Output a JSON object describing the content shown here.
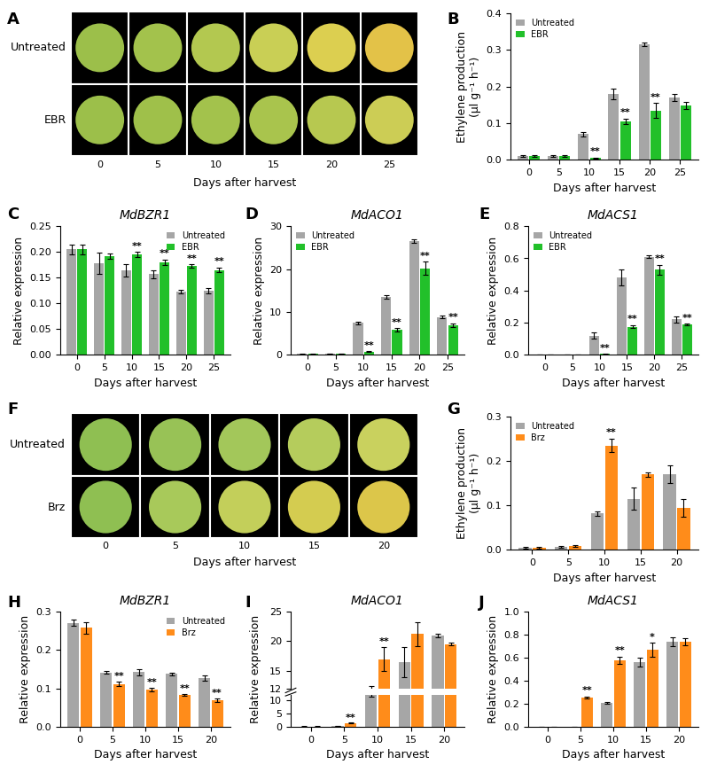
{
  "chart_data": [
    {
      "type": "image",
      "panel": "A",
      "rows": [
        "Untreated",
        "EBR"
      ],
      "categories": [
        "0",
        "5",
        "10",
        "15",
        "20",
        "25"
      ],
      "xlabel": "Days after harvest",
      "colors": [
        [
          "#9cbf4a",
          "#a3c24c",
          "#b3c850",
          "#c9cf55",
          "#dccf50",
          "#e3c248"
        ],
        [
          "#9cbf4a",
          "#9fc04a",
          "#a3c24c",
          "#a9c44d",
          "#b7c850",
          "#cccd55"
        ]
      ]
    },
    {
      "type": "bar",
      "panel": "B",
      "ylabel": "Ethylene production\n(μl g⁻¹ h⁻¹)",
      "xlabel": "Days after harvest",
      "categories": [
        "0",
        "5",
        "10",
        "15",
        "20",
        "25"
      ],
      "ylim": [
        0,
        0.4
      ],
      "yticks": [
        {
          "value": 0,
          "label": "0.0"
        },
        {
          "value": 0.1,
          "label": "0.1"
        },
        {
          "value": 0.2,
          "label": "0.2"
        },
        {
          "value": 0.3,
          "label": "0.3"
        },
        {
          "value": 0.4,
          "label": "0.4"
        }
      ],
      "legend": "upper left",
      "series": [
        {
          "name": "Untreated",
          "color": "#a6a6a6",
          "values": [
            0.01,
            0.01,
            0.07,
            0.18,
            0.315,
            0.17
          ],
          "errors": [
            0.002,
            0.002,
            0.005,
            0.015,
            0.005,
            0.01
          ],
          "significance": [
            null,
            null,
            null,
            null,
            null,
            null
          ]
        },
        {
          "name": "EBR",
          "color": "#22c02a",
          "values": [
            0.01,
            0.01,
            0.005,
            0.105,
            0.135,
            0.148
          ],
          "errors": [
            0.002,
            0.002,
            0.002,
            0.007,
            0.02,
            0.01
          ],
          "significance": [
            null,
            null,
            "**",
            "**",
            "**",
            null
          ]
        }
      ]
    },
    {
      "type": "bar",
      "panel": "C",
      "title": "MdBZR1",
      "ylabel": "Relative expression",
      "xlabel": "Days after harvest",
      "categories": [
        "0",
        "5",
        "10",
        "15",
        "20",
        "25"
      ],
      "ylim": [
        0,
        0.25
      ],
      "yticks": [
        {
          "value": 0,
          "label": "0.00"
        },
        {
          "value": 0.05,
          "label": "0.05"
        },
        {
          "value": 0.1,
          "label": "0.10"
        },
        {
          "value": 0.15,
          "label": "0.15"
        },
        {
          "value": 0.2,
          "label": "0.20"
        },
        {
          "value": 0.25,
          "label": "0.25"
        }
      ],
      "legend": "upper right",
      "series": [
        {
          "name": "Untreated",
          "color": "#a6a6a6",
          "values": [
            0.205,
            0.178,
            0.165,
            0.157,
            0.123,
            0.125
          ],
          "errors": [
            0.01,
            0.02,
            0.012,
            0.008,
            0.003,
            0.005
          ],
          "significance": [
            null,
            null,
            null,
            null,
            null,
            null
          ]
        },
        {
          "name": "EBR",
          "color": "#22c02a",
          "values": [
            0.205,
            0.192,
            0.195,
            0.18,
            0.173,
            0.165
          ],
          "errors": [
            0.01,
            0.005,
            0.005,
            0.005,
            0.003,
            0.005
          ],
          "significance": [
            null,
            null,
            "**",
            "**",
            "**",
            "**"
          ]
        }
      ]
    },
    {
      "type": "bar",
      "panel": "D",
      "title": "MdACO1",
      "ylabel": "Relative expression",
      "xlabel": "Days after harvest",
      "categories": [
        "0",
        "5",
        "10",
        "15",
        "20",
        "25"
      ],
      "ylim": [
        0,
        30
      ],
      "yticks": [
        0,
        10,
        20,
        30
      ],
      "legend": "upper left",
      "series": [
        {
          "name": "Untreated",
          "color": "#a6a6a6",
          "values": [
            0.2,
            0.3,
            7.5,
            13.5,
            26.5,
            8.8
          ],
          "errors": [
            0.05,
            0.05,
            0.3,
            0.4,
            0.4,
            0.3
          ],
          "significance": [
            null,
            null,
            null,
            null,
            null,
            null
          ]
        },
        {
          "name": "EBR",
          "color": "#22c02a",
          "values": [
            0.2,
            0.3,
            0.8,
            5.8,
            20.2,
            6.9
          ],
          "errors": [
            0.05,
            0.05,
            0.1,
            0.4,
            1.5,
            0.5
          ],
          "significance": [
            null,
            null,
            "**",
            "**",
            "**",
            "**"
          ]
        }
      ]
    },
    {
      "type": "bar",
      "panel": "E",
      "title": "MdACS1",
      "ylabel": "Relative expression",
      "xlabel": "Days after harvest",
      "categories": [
        "0",
        "5",
        "10",
        "15",
        "20",
        "25"
      ],
      "ylim": [
        0,
        0.8
      ],
      "yticks": [
        {
          "value": 0,
          "label": "0.0"
        },
        {
          "value": 0.2,
          "label": "0.2"
        },
        {
          "value": 0.4,
          "label": "0.4"
        },
        {
          "value": 0.6,
          "label": "0.6"
        },
        {
          "value": 0.8,
          "label": "0.8"
        }
      ],
      "legend": "upper left",
      "series": [
        {
          "name": "Untreated",
          "color": "#a6a6a6",
          "values": [
            0,
            0,
            0.12,
            0.48,
            0.61,
            0.22
          ],
          "errors": [
            0,
            0,
            0.02,
            0.05,
            0.01,
            0.02
          ],
          "significance": [
            null,
            null,
            null,
            null,
            null,
            null
          ]
        },
        {
          "name": "EBR",
          "color": "#22c02a",
          "values": [
            0,
            0,
            0.005,
            0.175,
            0.53,
            0.19
          ],
          "errors": [
            0,
            0,
            0.002,
            0.01,
            0.03,
            0.005
          ],
          "significance": [
            null,
            null,
            "**",
            "**",
            "**",
            "**"
          ]
        }
      ]
    },
    {
      "type": "image",
      "panel": "F",
      "rows": [
        "Untreated",
        "Brz"
      ],
      "categories": [
        "0",
        "5",
        "10",
        "15",
        "20"
      ],
      "xlabel": "Days after harvest",
      "colors": [
        [
          "#8fbf52",
          "#98c256",
          "#a3c75a",
          "#b5cc5c",
          "#c9d15e"
        ],
        [
          "#8fbf52",
          "#a8c95a",
          "#c3cf5a",
          "#d4cc50",
          "#dcc64a"
        ]
      ]
    },
    {
      "type": "bar",
      "panel": "G",
      "ylabel": "Ethylene production\n(μl g⁻¹ h⁻¹)",
      "xlabel": "Days after harvest",
      "categories": [
        "0",
        "5",
        "10",
        "15",
        "20"
      ],
      "ylim": [
        0,
        0.3
      ],
      "yticks": [
        {
          "value": 0,
          "label": "0.0"
        },
        {
          "value": 0.1,
          "label": "0.1"
        },
        {
          "value": 0.2,
          "label": "0.2"
        },
        {
          "value": 0.3,
          "label": "0.3"
        }
      ],
      "legend": "upper left",
      "series": [
        {
          "name": "Untreated",
          "color": "#a6a6a6",
          "values": [
            0.005,
            0.007,
            0.082,
            0.115,
            0.17
          ],
          "errors": [
            0.002,
            0.002,
            0.005,
            0.025,
            0.02
          ],
          "significance": [
            null,
            null,
            null,
            null,
            null
          ]
        },
        {
          "name": "Brz",
          "color": "#ff8c1a",
          "values": [
            0.005,
            0.008,
            0.235,
            0.17,
            0.095
          ],
          "errors": [
            0.002,
            0.002,
            0.015,
            0.005,
            0.02
          ],
          "significance": [
            null,
            null,
            "**",
            null,
            null
          ]
        }
      ]
    },
    {
      "type": "bar",
      "panel": "H",
      "title": "MdBZR1",
      "ylabel": "Relative expression",
      "xlabel": "Days after harvest",
      "categories": [
        "0",
        "5",
        "10",
        "15",
        "20"
      ],
      "ylim": [
        0,
        0.3
      ],
      "yticks": [
        {
          "value": 0,
          "label": "0.0"
        },
        {
          "value": 0.1,
          "label": "0.1"
        },
        {
          "value": 0.2,
          "label": "0.2"
        },
        {
          "value": 0.3,
          "label": "0.3"
        }
      ],
      "legend": "upper right",
      "series": [
        {
          "name": "Untreated",
          "color": "#a6a6a6",
          "values": [
            0.27,
            0.142,
            0.143,
            0.138,
            0.127
          ],
          "errors": [
            0.008,
            0.003,
            0.008,
            0.004,
            0.008
          ],
          "significance": [
            null,
            null,
            null,
            null,
            null
          ]
        },
        {
          "name": "Brz",
          "color": "#ff8c1a",
          "values": [
            0.258,
            0.112,
            0.097,
            0.083,
            0.07
          ],
          "errors": [
            0.015,
            0.005,
            0.004,
            0.003,
            0.004
          ],
          "significance": [
            null,
            "**",
            "**",
            "**",
            "**"
          ]
        }
      ]
    },
    {
      "type": "bar",
      "panel": "I",
      "title": "MdACO1",
      "ylabel": "Relative expression",
      "xlabel": "Days after harvest",
      "categories": [
        "0",
        "5",
        "10",
        "15",
        "20"
      ],
      "axis_break": {
        "lower": {
          "ylim": [
            0,
            12
          ],
          "yticks": [
            0,
            5,
            10
          ]
        },
        "upper": {
          "ylim": [
            12,
            25
          ],
          "yticks": [
            12,
            15,
            20,
            25
          ]
        }
      },
      "series": [
        {
          "name": "Untreated",
          "color": "#a6a6a6",
          "values": [
            0.2,
            0.3,
            11.8,
            16.5,
            21
          ],
          "errors": [
            0.05,
            0.05,
            0.6,
            2.5,
            0.3
          ],
          "significance": [
            null,
            null,
            null,
            null,
            null
          ]
        },
        {
          "name": "Brz",
          "color": "#ff8c1a",
          "values": [
            0.2,
            1.5,
            17,
            21.2,
            19.5
          ],
          "errors": [
            0.05,
            0.2,
            2,
            2,
            0.2
          ],
          "significance": [
            null,
            "**",
            "**",
            null,
            null
          ]
        }
      ]
    },
    {
      "type": "bar",
      "panel": "J",
      "title": "MdACS1",
      "ylabel": "Relative expression",
      "xlabel": "Days after harvest",
      "categories": [
        "0",
        "5",
        "10",
        "15",
        "20"
      ],
      "ylim": [
        0,
        1.0
      ],
      "yticks": [
        {
          "value": 0,
          "label": "0.0"
        },
        {
          "value": 0.2,
          "label": "0.2"
        },
        {
          "value": 0.4,
          "label": "0.4"
        },
        {
          "value": 0.6,
          "label": "0.6"
        },
        {
          "value": 0.8,
          "label": "0.8"
        },
        {
          "value": 1.0,
          "label": "1.0"
        }
      ],
      "series": [
        {
          "name": "Untreated",
          "color": "#a6a6a6",
          "values": [
            0,
            0,
            0.21,
            0.56,
            0.74
          ],
          "errors": [
            0,
            0,
            0.01,
            0.04,
            0.04
          ],
          "significance": [
            null,
            null,
            null,
            null,
            null
          ]
        },
        {
          "name": "Brz",
          "color": "#ff8c1a",
          "values": [
            0,
            0.255,
            0.58,
            0.67,
            0.74
          ],
          "errors": [
            0,
            0.01,
            0.03,
            0.06,
            0.03
          ],
          "significance": [
            null,
            "**",
            "**",
            "*",
            null
          ]
        }
      ]
    }
  ]
}
